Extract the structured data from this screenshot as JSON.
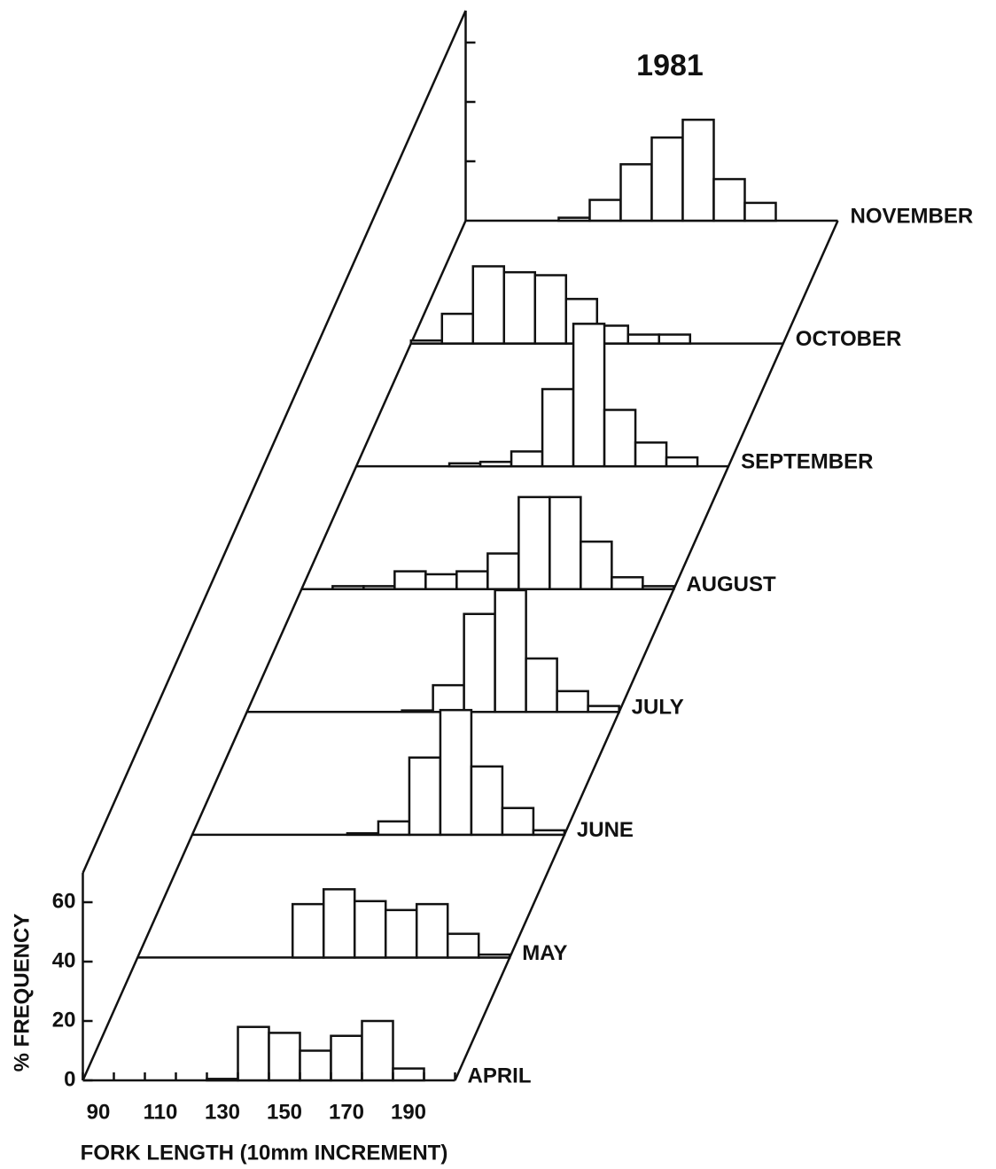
{
  "chart_data": {
    "type": "histogram",
    "title": "1981",
    "xlabel": "FORK LENGTH (10mm INCREMENT)",
    "ylabel": "% FREQUENCY",
    "bins": [
      85,
      95,
      105,
      115,
      125,
      135,
      145,
      155,
      165,
      175,
      185,
      195,
      205
    ],
    "xlim": [
      85,
      205
    ],
    "xticks": [
      90,
      110,
      130,
      150,
      170,
      190
    ],
    "ylim": [
      0,
      70
    ],
    "yticks": [
      0,
      20,
      40,
      60
    ],
    "color": "#ffffff",
    "series": [
      {
        "name": "APRIL",
        "values": [
          0,
          0,
          0,
          0,
          0.5,
          18,
          16,
          10,
          15,
          20,
          4,
          0
        ]
      },
      {
        "name": "MAY",
        "values": [
          0,
          0,
          0,
          0,
          0,
          18,
          23,
          19,
          16,
          18,
          8,
          1
        ]
      },
      {
        "name": "JUNE",
        "values": [
          0,
          0,
          0,
          0,
          0,
          0.5,
          4.5,
          26,
          42,
          23,
          9,
          1.5
        ]
      },
      {
        "name": "JULY",
        "values": [
          0,
          0,
          0,
          0,
          0,
          0.5,
          9,
          33,
          41,
          18,
          7,
          2
        ]
      },
      {
        "name": "AUGUST",
        "values": [
          0,
          1,
          1,
          6,
          5,
          6,
          12,
          31,
          31,
          16,
          4,
          1
        ]
      },
      {
        "name": "SEPTEMBER",
        "values": [
          0,
          0,
          0,
          1,
          1.5,
          5,
          26,
          48,
          19,
          8,
          3,
          0
        ]
      },
      {
        "name": "OCTOBER",
        "values": [
          1,
          10,
          26,
          24,
          23,
          15,
          6,
          3,
          3,
          0,
          0,
          0
        ]
      },
      {
        "name": "NOVEMBER",
        "values": [
          0,
          0,
          0,
          1,
          7,
          19,
          28,
          34,
          14,
          6,
          0,
          0
        ]
      }
    ]
  }
}
